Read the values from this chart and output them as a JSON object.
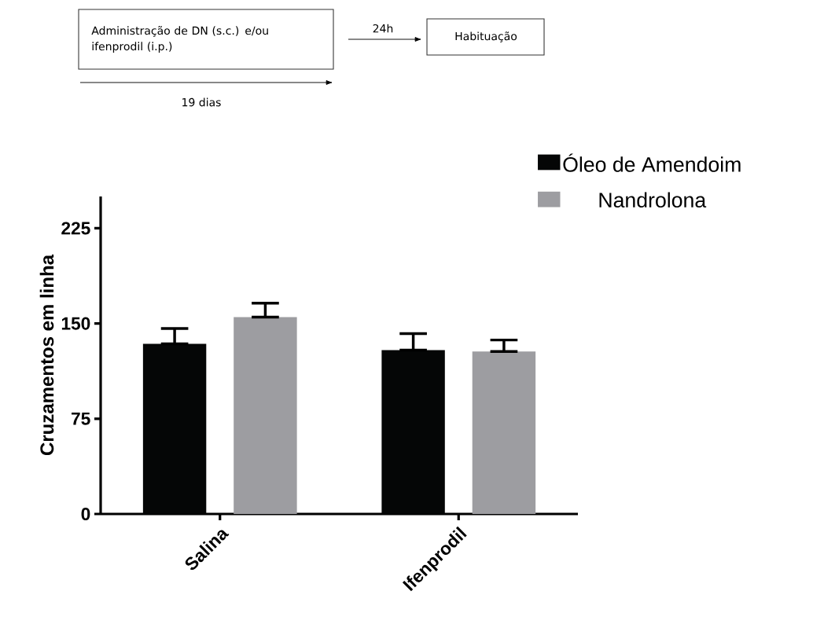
{
  "chart_data": {
    "type": "bar",
    "ylabel": "Cruzamentos em linha",
    "categories": [
      "Salina",
      "Ifenprodil"
    ],
    "series": [
      {
        "name": "Óleo de Amendoim",
        "color": "#050606",
        "values": [
          134,
          129
        ],
        "errors": [
          [
            134,
            146
          ],
          [
            129,
            142
          ]
        ]
      },
      {
        "name": "Nandrolona",
        "color": "#9d9da1",
        "values": [
          155,
          128
        ],
        "errors": [
          [
            155,
            166
          ],
          [
            128,
            137
          ]
        ]
      }
    ],
    "ylim": [
      0,
      250
    ],
    "yticks": [
      0,
      75,
      150,
      225
    ],
    "legend": "top right",
    "grid": false,
    "annotations": [
      "Administração de DN (s.c.) e/ou ifenprodil (i.p.)",
      "24h",
      "Habituação",
      "19 dias"
    ]
  }
}
